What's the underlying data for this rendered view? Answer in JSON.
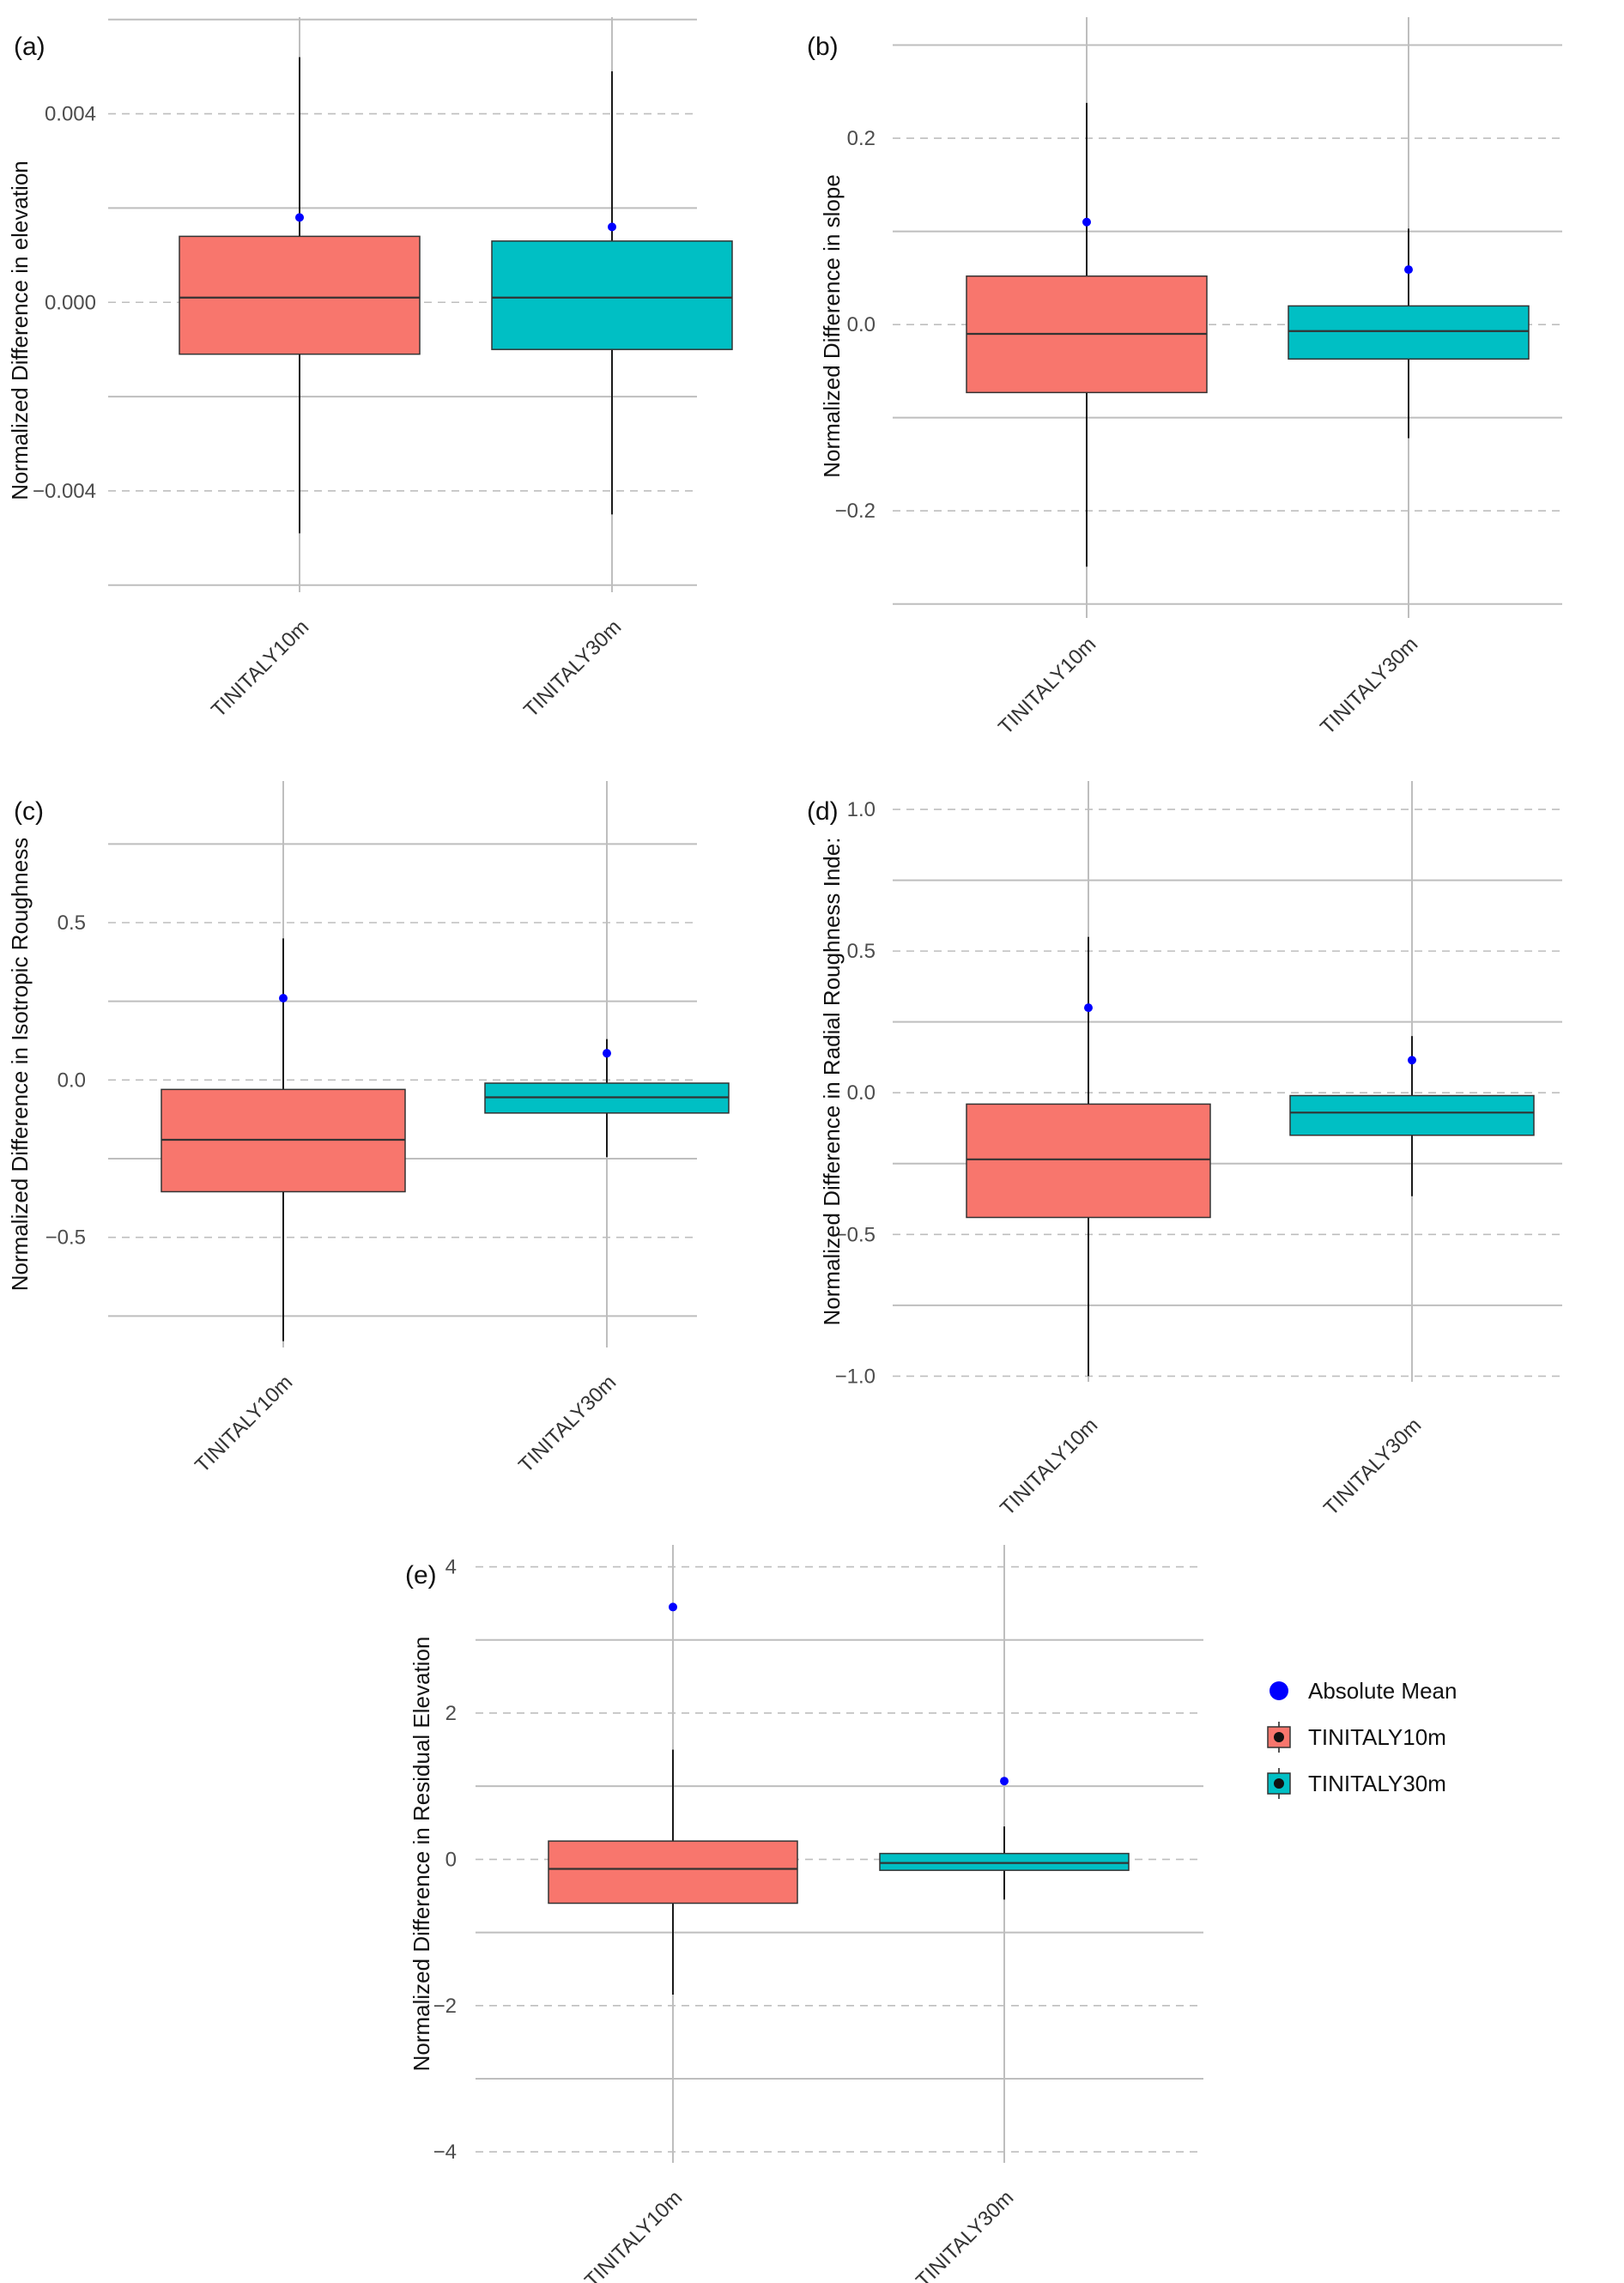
{
  "chart_data": [
    {
      "type": "box",
      "panel_label": "(a)",
      "ylabel": "Normalized Difference in elevation",
      "categories": [
        "TINITALY10m",
        "TINITALY30m"
      ],
      "yticks": [
        -0.004,
        0.0,
        0.004
      ],
      "ytick_labels": [
        "−0.004",
        "0.000",
        "0.004"
      ],
      "ylim": [
        -0.00615,
        0.00605
      ],
      "grid": true,
      "boxes": [
        {
          "category": "TINITALY10m",
          "whisker_low": -0.0049,
          "q1": -0.0011,
          "median": 0.0001,
          "q3": 0.0014,
          "whisker_high": 0.0052,
          "absolute_mean": 0.0018,
          "fill": "#F8766D"
        },
        {
          "category": "TINITALY30m",
          "whisker_low": -0.0045,
          "q1": -0.001,
          "median": 0.0001,
          "q3": 0.0013,
          "whisker_high": 0.0049,
          "absolute_mean": 0.0016,
          "fill": "#00BFC4"
        }
      ]
    },
    {
      "type": "box",
      "panel_label": "(b)",
      "ylabel": "Normalized Difference in slope",
      "categories": [
        "TINITALY10m",
        "TINITALY30m"
      ],
      "yticks": [
        -0.2,
        0.0,
        0.2
      ],
      "ytick_labels": [
        "−0.2",
        "0.0",
        "0.2"
      ],
      "ylim": [
        -0.315,
        0.33
      ],
      "grid": true,
      "boxes": [
        {
          "category": "TINITALY10m",
          "whisker_low": -0.26,
          "q1": -0.073,
          "median": -0.01,
          "q3": 0.052,
          "whisker_high": 0.238,
          "absolute_mean": 0.11,
          "fill": "#F8766D"
        },
        {
          "category": "TINITALY30m",
          "whisker_low": -0.122,
          "q1": -0.037,
          "median": -0.007,
          "q3": 0.02,
          "whisker_high": 0.103,
          "absolute_mean": 0.059,
          "fill": "#00BFC4"
        }
      ]
    },
    {
      "type": "box",
      "panel_label": "(c)",
      "ylabel": "Normalized Difference in Isotropic Roughness",
      "categories": [
        "TINITALY10m",
        "TINITALY30m"
      ],
      "yticks": [
        -0.5,
        0.0,
        0.5
      ],
      "ytick_labels": [
        "−0.5",
        "0.0",
        "0.5"
      ],
      "ylim": [
        -0.85,
        0.95
      ],
      "grid": true,
      "boxes": [
        {
          "category": "TINITALY10m",
          "whisker_low": -0.83,
          "q1": -0.355,
          "median": -0.19,
          "q3": -0.03,
          "whisker_high": 0.45,
          "absolute_mean": 0.26,
          "fill": "#F8766D"
        },
        {
          "category": "TINITALY30m",
          "whisker_low": -0.245,
          "q1": -0.105,
          "median": -0.055,
          "q3": -0.01,
          "whisker_high": 0.13,
          "absolute_mean": 0.085,
          "fill": "#00BFC4"
        }
      ]
    },
    {
      "type": "box",
      "panel_label": "(d)",
      "ylabel": "Normalized Difference in Radial Roughness Inde:",
      "categories": [
        "TINITALY10m",
        "TINITALY30m"
      ],
      "yticks": [
        -1.0,
        -0.5,
        0.0,
        0.5,
        1.0
      ],
      "ytick_labels": [
        "−1.0",
        "−0.5",
        "0.0",
        "0.5",
        "1.0"
      ],
      "ylim": [
        -1.02,
        1.1
      ],
      "grid": true,
      "boxes": [
        {
          "category": "TINITALY10m",
          "whisker_low": -1.0,
          "q1": -0.44,
          "median": -0.235,
          "q3": -0.04,
          "whisker_high": 0.55,
          "absolute_mean": 0.3,
          "fill": "#F8766D"
        },
        {
          "category": "TINITALY30m",
          "whisker_low": -0.365,
          "q1": -0.15,
          "median": -0.07,
          "q3": -0.01,
          "whisker_high": 0.2,
          "absolute_mean": 0.115,
          "fill": "#00BFC4"
        }
      ]
    },
    {
      "type": "box",
      "panel_label": "(e)",
      "ylabel": "Normalized Difference in Residual Elevation",
      "categories": [
        "TINITALY10m",
        "TINITALY30m"
      ],
      "yticks": [
        -4,
        -2,
        0,
        2,
        4
      ],
      "ytick_labels": [
        "−4",
        "−2",
        "0",
        "2",
        "4"
      ],
      "ylim": [
        -4.15,
        4.3
      ],
      "grid": true,
      "boxes": [
        {
          "category": "TINITALY10m",
          "whisker_low": -1.85,
          "q1": -0.6,
          "median": -0.13,
          "q3": 0.25,
          "whisker_high": 1.5,
          "absolute_mean": 3.45,
          "fill": "#F8766D"
        },
        {
          "category": "TINITALY30m",
          "whisker_low": -0.55,
          "q1": -0.15,
          "median": -0.05,
          "q3": 0.08,
          "whisker_high": 0.45,
          "absolute_mean": 1.07,
          "fill": "#00BFC4"
        }
      ]
    }
  ],
  "legend": {
    "placement": "right of panel (e)",
    "items": [
      {
        "label": "Absolute Mean",
        "kind": "point",
        "color": "#0000FF"
      },
      {
        "label": "TINITALY10m",
        "kind": "box",
        "color": "#F8766D"
      },
      {
        "label": "TINITALY30m",
        "kind": "box",
        "color": "#00BFC4"
      }
    ]
  },
  "colors": {
    "mean_point": "#0000FF",
    "box_outline": "#333333",
    "grid_major": "#BEBEBE",
    "grid_minor": "#BEBEBE",
    "whisker": "#1A1A1A"
  }
}
